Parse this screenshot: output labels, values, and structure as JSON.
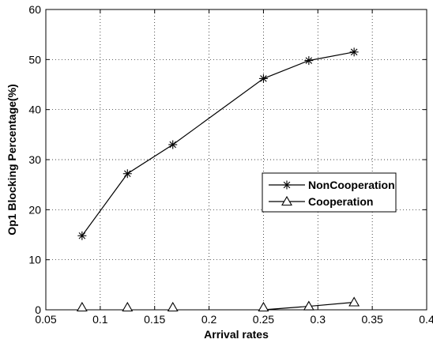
{
  "chart_data": {
    "type": "line",
    "title": "",
    "xlabel": "Arrival rates",
    "ylabel": "Op1 Blocking Percentage(%)",
    "xlim": [
      0.05,
      0.4
    ],
    "ylim": [
      0,
      60
    ],
    "xticks": [
      0.05,
      0.1,
      0.15,
      0.2,
      0.25,
      0.3,
      0.35,
      0.4
    ],
    "xtick_labels": [
      "0.05",
      "0.1",
      "0.15",
      "0.2",
      "0.25",
      "0.3",
      "0.35",
      "0.4"
    ],
    "yticks": [
      0,
      10,
      20,
      30,
      40,
      50,
      60
    ],
    "ytick_labels": [
      "0",
      "10",
      "20",
      "30",
      "40",
      "50",
      "60"
    ],
    "grid": true,
    "legend_position": "right",
    "series": [
      {
        "name": "NonCooperation",
        "marker": "asterisk",
        "color": "#000000",
        "x": [
          0.0833,
          0.125,
          0.1667,
          0.25,
          0.2917,
          0.3333
        ],
        "y": [
          14.8,
          27.2,
          33.0,
          46.2,
          49.8,
          51.5
        ]
      },
      {
        "name": "Cooperation",
        "marker": "triangle",
        "color": "#000000",
        "x": [
          0.0833,
          0.125,
          0.1667,
          0.25,
          0.2917,
          0.3333
        ],
        "y": [
          0.0,
          0.0,
          0.0,
          0.0,
          0.7,
          1.5
        ]
      }
    ]
  }
}
